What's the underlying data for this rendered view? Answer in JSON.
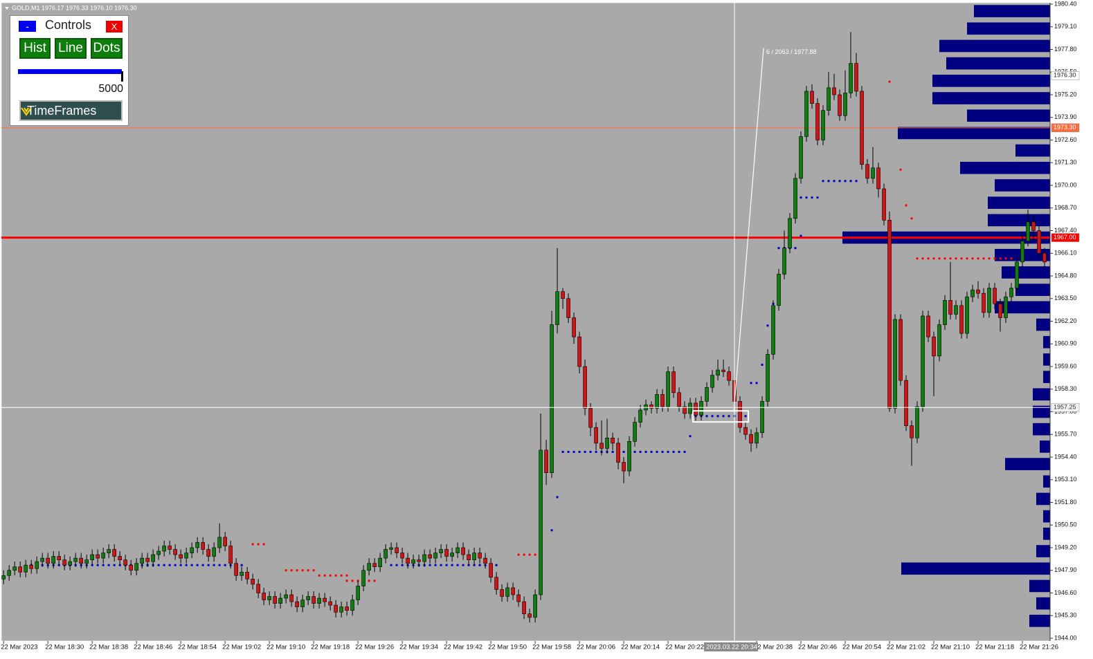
{
  "header": {
    "symbol_info": "GOLD,M1  1976.17 1976.33 1976.10 1976.30"
  },
  "controls": {
    "minimize": "-",
    "title": "Controls",
    "close": "X",
    "buttons": [
      "Hist",
      "Line",
      "Dots"
    ],
    "slider_value": "5000",
    "timeframes": "TimeFrames"
  },
  "chart_data": {
    "type": "candlestick",
    "up_color": "#0d7d0d",
    "down_color": "#d41414",
    "wick_color": "#000000",
    "ylim": [
      1944.0,
      1980.4
    ],
    "yticks": [
      {
        "value": 1980.4,
        "label": "1980.40"
      },
      {
        "value": 1979.1,
        "label": "1979.10"
      },
      {
        "value": 1977.8,
        "label": "1977.80"
      },
      {
        "value": 1976.5,
        "label": "1976.50"
      },
      {
        "value": 1975.2,
        "label": "1975.20"
      },
      {
        "value": 1973.9,
        "label": "1973.90"
      },
      {
        "value": 1972.6,
        "label": "1972.60"
      },
      {
        "value": 1971.3,
        "label": "1971.30"
      },
      {
        "value": 1970.0,
        "label": "1970.00"
      },
      {
        "value": 1968.7,
        "label": "1968.70"
      },
      {
        "value": 1967.4,
        "label": "1967.40"
      },
      {
        "value": 1966.1,
        "label": "1966.10"
      },
      {
        "value": 1964.8,
        "label": "1964.80"
      },
      {
        "value": 1963.5,
        "label": "1963.50"
      },
      {
        "value": 1962.2,
        "label": "1962.20"
      },
      {
        "value": 1960.9,
        "label": "1960.90"
      },
      {
        "value": 1959.6,
        "label": "1959.60"
      },
      {
        "value": 1958.3,
        "label": "1958.30"
      },
      {
        "value": 1957.0,
        "label": "1957.00"
      },
      {
        "value": 1955.7,
        "label": "1955.70"
      },
      {
        "value": 1954.4,
        "label": "1954.40"
      },
      {
        "value": 1953.1,
        "label": "1953.10"
      },
      {
        "value": 1951.8,
        "label": "1951.80"
      },
      {
        "value": 1950.5,
        "label": "1950.50"
      },
      {
        "value": 1949.2,
        "label": "1949.20"
      },
      {
        "value": 1947.9,
        "label": "1947.90"
      },
      {
        "value": 1946.6,
        "label": "1946.60"
      },
      {
        "value": 1945.3,
        "label": "1945.30"
      },
      {
        "value": 1944.0,
        "label": "1944.00"
      }
    ],
    "xlim": [
      -0.4,
      189
    ],
    "xticks": [
      {
        "value": 0,
        "label": "22 Mar 2023"
      },
      {
        "value": 8,
        "label": "22 Mar 18:30"
      },
      {
        "value": 16,
        "label": "22 Mar 18:38"
      },
      {
        "value": 24,
        "label": "22 Mar 18:46"
      },
      {
        "value": 32,
        "label": "22 Mar 18:54"
      },
      {
        "value": 40,
        "label": "22 Mar 19:02"
      },
      {
        "value": 48,
        "label": "22 Mar 19:10"
      },
      {
        "value": 56,
        "label": "22 Mar 19:18"
      },
      {
        "value": 64,
        "label": "22 Mar 19:26"
      },
      {
        "value": 72,
        "label": "22 Mar 19:34"
      },
      {
        "value": 80,
        "label": "22 Mar 19:42"
      },
      {
        "value": 88,
        "label": "22 Mar 19:50"
      },
      {
        "value": 96,
        "label": "22 Mar 19:58"
      },
      {
        "value": 104,
        "label": "22 Mar 20:06"
      },
      {
        "value": 112,
        "label": "22 Mar 20:14"
      },
      {
        "value": 120,
        "label": "22 Mar 20:22"
      },
      {
        "value": 136,
        "label": "22 Mar 20:38"
      },
      {
        "value": 144,
        "label": "22 Mar 20:46"
      },
      {
        "value": 152,
        "label": "22 Mar 20:54"
      },
      {
        "value": 160,
        "label": "22 Mar 21:02"
      },
      {
        "value": 168,
        "label": "22 Mar 21:10"
      },
      {
        "value": 176,
        "label": "22 Mar 21:18"
      },
      {
        "value": 184,
        "label": "22 Mar 21:26"
      }
    ],
    "open": [
      1947.4,
      1947.6,
      1947.9,
      1948.1,
      1947.8,
      1948.2,
      1948.0,
      1948.4,
      1948.6,
      1948.3,
      1948.7,
      1948.5,
      1948.2,
      1948.4,
      1948.6,
      1948.3,
      1948.5,
      1948.8,
      1948.6,
      1948.9,
      1949.1,
      1948.7,
      1948.5,
      1948.2,
      1947.9,
      1948.3,
      1948.6,
      1948.4,
      1948.8,
      1949.0,
      1949.3,
      1949.1,
      1948.8,
      1948.6,
      1948.9,
      1949.2,
      1949.5,
      1949.1,
      1948.7,
      1949.2,
      1949.8,
      1949.3,
      1948.3,
      1947.6,
      1947.8,
      1947.4,
      1947.1,
      1946.6,
      1946.2,
      1946.4,
      1946.0,
      1946.3,
      1946.5,
      1946.1,
      1945.8,
      1946.2,
      1946.4,
      1946.0,
      1946.3,
      1946.1,
      1945.9,
      1945.5,
      1945.8,
      1945.6,
      1946.2,
      1947.0,
      1947.9,
      1948.3,
      1948.1,
      1948.6,
      1949.1,
      1949.2,
      1948.9,
      1948.6,
      1948.3,
      1948.5,
      1948.4,
      1948.8,
      1948.6,
      1948.9,
      1949.1,
      1948.7,
      1948.9,
      1949.2,
      1948.8,
      1948.5,
      1948.9,
      1948.6,
      1948.3,
      1947.5,
      1946.8,
      1946.4,
      1946.9,
      1946.5,
      1946.1,
      1945.4,
      1945.2,
      1946.5,
      1954.8,
      1953.5,
      1962.0,
      1963.9,
      1963.5,
      1962.4,
      1961.3,
      1959.6,
      1957.2,
      1956.1,
      1955.2,
      1954.9,
      1955.5,
      1955.2,
      1954.1,
      1953.6,
      1955.3,
      1956.4,
      1957.1,
      1957.4,
      1957.2,
      1958.0,
      1957.3,
      1959.3,
      1958.1,
      1957.3,
      1956.9,
      1957.5,
      1956.8,
      1957.6,
      1958.4,
      1959.1,
      1959.4,
      1959.3,
      1958.8,
      1957.6,
      1956.1,
      1955.7,
      1955.2,
      1955.8,
      1957.6,
      1960.3,
      1963.1,
      1964.9,
      1966.4,
      1968.1,
      1970.4,
      1972.8,
      1975.4,
      1974.7,
      1972.6,
      1974.3,
      1975.6,
      1975.2,
      1974.0,
      1975.3,
      1977.0,
      1975.4,
      1971.2,
      1970.4,
      1971.0,
      1969.8,
      1968.0,
      1957.2,
      1962.3,
      1958.8,
      1956.2,
      1955.5,
      1957.3,
      1962.5,
      1961.3,
      1960.2,
      1962.0,
      1963.4,
      1962.6,
      1963.1,
      1961.5,
      1963.6,
      1964.0,
      1963.8,
      1962.7,
      1964.1,
      1963.2,
      1962.4,
      1963.6,
      1964.1,
      1965.6,
      1966.8,
      1967.9,
      1967.4,
      1966.1
    ],
    "high": [
      1947.9,
      1948.2,
      1948.4,
      1948.4,
      1948.5,
      1948.5,
      1948.7,
      1948.9,
      1948.9,
      1949.0,
      1949.0,
      1948.8,
      1948.7,
      1948.9,
      1948.9,
      1948.8,
      1949.1,
      1949.1,
      1949.2,
      1949.4,
      1949.4,
      1949.0,
      1948.8,
      1948.5,
      1948.6,
      1948.9,
      1948.9,
      1949.1,
      1949.3,
      1949.6,
      1949.6,
      1949.4,
      1949.1,
      1949.2,
      1949.5,
      1949.8,
      1949.8,
      1949.4,
      1949.5,
      1950.6,
      1950.1,
      1949.6,
      1948.6,
      1948.1,
      1948.1,
      1947.7,
      1947.4,
      1946.9,
      1946.7,
      1946.7,
      1946.6,
      1946.8,
      1946.8,
      1946.4,
      1946.5,
      1946.7,
      1946.7,
      1946.6,
      1946.6,
      1946.4,
      1946.2,
      1946.1,
      1946.1,
      1946.5,
      1947.3,
      1948.2,
      1948.6,
      1948.6,
      1948.9,
      1949.4,
      1949.5,
      1949.5,
      1949.2,
      1948.9,
      1948.8,
      1948.8,
      1949.1,
      1949.1,
      1949.2,
      1949.4,
      1949.4,
      1949.2,
      1949.5,
      1949.5,
      1949.1,
      1949.2,
      1949.2,
      1948.9,
      1948.6,
      1947.8,
      1947.1,
      1947.2,
      1947.2,
      1946.8,
      1946.4,
      1945.7,
      1946.8,
      1956.9,
      1955.4,
      1962.8,
      1966.4,
      1964.1,
      1963.8,
      1962.7,
      1961.6,
      1960.0,
      1957.5,
      1956.4,
      1956.5,
      1956.6,
      1955.8,
      1955.5,
      1954.4,
      1955.6,
      1956.7,
      1957.4,
      1957.7,
      1957.6,
      1958.3,
      1958.3,
      1959.6,
      1959.6,
      1958.4,
      1957.6,
      1957.8,
      1957.8,
      1957.9,
      1958.7,
      1959.4,
      1960.0,
      1960.0,
      1959.6,
      1959.1,
      1957.9,
      1956.4,
      1956.0,
      1956.1,
      1957.9,
      1960.6,
      1963.4,
      1965.2,
      1967.4,
      1968.4,
      1970.7,
      1973.1,
      1975.7,
      1975.8,
      1975.0,
      1974.6,
      1976.5,
      1976.4,
      1975.5,
      1976.6,
      1978.8,
      1977.6,
      1975.7,
      1971.5,
      1972.2,
      1971.3,
      1970.1,
      1968.5,
      1962.6,
      1962.6,
      1959.1,
      1956.5,
      1957.6,
      1962.8,
      1962.8,
      1961.6,
      1962.3,
      1963.7,
      1965.6,
      1963.4,
      1963.4,
      1963.9,
      1964.3,
      1964.5,
      1964.1,
      1964.4,
      1964.4,
      1963.5,
      1963.9,
      1964.4,
      1965.9,
      1967.1,
      1968.6,
      1968.3,
      1967.7,
      1966.4
    ],
    "low": [
      1947.1,
      1947.3,
      1947.6,
      1947.5,
      1947.5,
      1947.7,
      1947.7,
      1948.1,
      1948.0,
      1948.0,
      1948.2,
      1947.9,
      1947.9,
      1948.1,
      1948.0,
      1948.0,
      1948.2,
      1948.3,
      1948.3,
      1948.6,
      1948.4,
      1948.2,
      1947.9,
      1947.6,
      1947.6,
      1948.0,
      1948.1,
      1948.1,
      1948.5,
      1948.7,
      1948.8,
      1948.5,
      1948.3,
      1948.3,
      1948.6,
      1948.9,
      1948.8,
      1948.4,
      1948.4,
      1948.9,
      1949.0,
      1948.0,
      1947.3,
      1947.3,
      1947.1,
      1946.8,
      1946.3,
      1945.9,
      1945.9,
      1945.7,
      1945.7,
      1946.0,
      1945.8,
      1945.5,
      1945.5,
      1945.9,
      1945.7,
      1945.7,
      1945.8,
      1945.6,
      1945.2,
      1945.2,
      1945.3,
      1945.3,
      1945.9,
      1946.7,
      1947.6,
      1947.8,
      1947.8,
      1948.3,
      1948.8,
      1948.6,
      1948.3,
      1948.0,
      1948.0,
      1948.1,
      1948.1,
      1948.3,
      1948.3,
      1948.6,
      1948.4,
      1948.4,
      1948.6,
      1948.5,
      1948.2,
      1948.2,
      1948.3,
      1948.0,
      1947.2,
      1946.5,
      1946.1,
      1946.1,
      1946.2,
      1945.8,
      1945.1,
      1944.9,
      1944.9,
      1946.2,
      1952.8,
      1953.2,
      1961.5,
      1962.9,
      1962.1,
      1960.9,
      1959.2,
      1956.8,
      1955.6,
      1954.8,
      1954.5,
      1954.6,
      1954.8,
      1953.7,
      1952.9,
      1953.3,
      1955.0,
      1956.1,
      1956.8,
      1956.9,
      1956.9,
      1957.0,
      1957.0,
      1957.8,
      1957.0,
      1956.6,
      1956.6,
      1956.5,
      1956.5,
      1957.3,
      1958.1,
      1958.8,
      1959.0,
      1958.5,
      1957.3,
      1955.8,
      1955.4,
      1954.7,
      1954.9,
      1955.5,
      1957.3,
      1960.0,
      1962.8,
      1964.6,
      1966.1,
      1967.8,
      1970.1,
      1972.5,
      1974.4,
      1972.3,
      1972.3,
      1974.0,
      1974.9,
      1973.7,
      1973.7,
      1975.0,
      1975.1,
      1970.9,
      1970.1,
      1970.1,
      1969.3,
      1967.7,
      1957.0,
      1956.9,
      1958.5,
      1955.9,
      1953.9,
      1955.2,
      1957.0,
      1961.0,
      1957.9,
      1959.9,
      1961.7,
      1962.3,
      1962.3,
      1961.2,
      1961.2,
      1963.3,
      1963.5,
      1962.4,
      1962.4,
      1962.9,
      1961.6,
      1962.1,
      1963.3,
      1963.8,
      1965.3,
      1966.5,
      1966.8,
      1965.8,
      1965.3
    ],
    "close": [
      1947.6,
      1947.9,
      1948.1,
      1947.8,
      1948.2,
      1948.0,
      1948.4,
      1948.6,
      1948.3,
      1948.7,
      1948.5,
      1948.2,
      1948.4,
      1948.6,
      1948.3,
      1948.5,
      1948.8,
      1948.6,
      1948.9,
      1949.1,
      1948.7,
      1948.5,
      1948.2,
      1947.9,
      1948.3,
      1948.6,
      1948.4,
      1948.8,
      1949.0,
      1949.3,
      1949.1,
      1948.8,
      1948.6,
      1948.9,
      1949.2,
      1949.5,
      1949.1,
      1948.7,
      1949.2,
      1949.8,
      1949.3,
      1948.3,
      1947.6,
      1947.8,
      1947.4,
      1947.1,
      1946.6,
      1946.2,
      1946.4,
      1946.0,
      1946.3,
      1946.5,
      1946.1,
      1945.8,
      1946.2,
      1946.4,
      1946.0,
      1946.3,
      1946.1,
      1945.9,
      1945.5,
      1945.8,
      1945.6,
      1946.2,
      1947.0,
      1947.9,
      1948.3,
      1948.1,
      1948.6,
      1949.1,
      1949.2,
      1948.9,
      1948.6,
      1948.3,
      1948.5,
      1948.4,
      1948.8,
      1948.6,
      1948.9,
      1949.1,
      1948.7,
      1948.9,
      1949.2,
      1948.8,
      1948.5,
      1948.9,
      1948.6,
      1948.3,
      1947.5,
      1946.8,
      1946.4,
      1946.9,
      1946.5,
      1946.1,
      1945.4,
      1945.2,
      1946.5,
      1954.8,
      1953.5,
      1962.0,
      1963.9,
      1963.5,
      1962.4,
      1961.3,
      1959.6,
      1957.2,
      1956.1,
      1955.2,
      1954.9,
      1955.5,
      1955.2,
      1954.1,
      1953.6,
      1955.3,
      1956.4,
      1957.1,
      1957.4,
      1957.2,
      1958.0,
      1957.3,
      1959.3,
      1958.1,
      1957.3,
      1956.9,
      1957.5,
      1956.8,
      1957.6,
      1958.4,
      1959.1,
      1959.4,
      1959.3,
      1958.8,
      1957.6,
      1956.1,
      1955.7,
      1955.2,
      1955.8,
      1957.6,
      1960.3,
      1963.1,
      1964.9,
      1966.4,
      1968.1,
      1970.4,
      1972.8,
      1975.4,
      1974.7,
      1972.6,
      1974.3,
      1975.6,
      1975.2,
      1974.0,
      1975.3,
      1977.0,
      1975.4,
      1971.2,
      1970.4,
      1971.0,
      1969.8,
      1968.0,
      1957.2,
      1962.3,
      1958.8,
      1956.2,
      1955.5,
      1957.3,
      1962.5,
      1961.3,
      1960.2,
      1962.0,
      1963.4,
      1962.6,
      1963.1,
      1961.5,
      1963.6,
      1964.0,
      1963.8,
      1962.7,
      1964.1,
      1963.2,
      1962.4,
      1963.6,
      1964.1,
      1965.6,
      1966.8,
      1967.9,
      1967.4,
      1966.1,
      1965.6
    ],
    "profile": {
      "color": "#000080",
      "xlim": [
        0,
        300
      ],
      "prices": [
        1945,
        1946,
        1947,
        1948,
        1949,
        1950,
        1951,
        1952,
        1953,
        1954,
        1955,
        1956,
        1957,
        1958,
        1959,
        1960,
        1961,
        1962,
        1963,
        1964,
        1965,
        1966,
        1967,
        1968,
        1969,
        1970,
        1971,
        1972,
        1973,
        1974,
        1975,
        1976,
        1977,
        1978,
        1979,
        1980
      ],
      "values": [
        30,
        20,
        30,
        215,
        20,
        10,
        10,
        20,
        10,
        65,
        15,
        25,
        25,
        25,
        10,
        10,
        10,
        20,
        80,
        50,
        70,
        80,
        300,
        90,
        90,
        80,
        130,
        50,
        220,
        120,
        170,
        170,
        150,
        160,
        120,
        110
      ]
    },
    "hlines": [
      {
        "price": 1967.0,
        "label": "1967.00",
        "color": "#ff0000"
      },
      {
        "price": 1973.3,
        "label": "1973.30",
        "color": "#ff6a3d"
      }
    ],
    "bid": {
      "price": 1976.3,
      "label": "1976.30"
    },
    "crosshair": {
      "x": 132,
      "price": 1957.25,
      "time_label": "2023.03.22 20:34",
      "price_label": "1957.25"
    },
    "ruler": {
      "label": "6 / 2063 / 1977.88",
      "from": {
        "x": 131.9,
        "price": 1957.1
      },
      "to": {
        "x": 137.25,
        "price": 1977.88
      }
    },
    "dots": [
      {
        "from": 5,
        "to": 43,
        "price": 1948.2,
        "color": "#0000cc"
      },
      {
        "from": 45,
        "to": 47,
        "price": 1949.4,
        "color": "#ff0000"
      },
      {
        "from": 51,
        "to": 56,
        "price": 1947.9,
        "color": "#ff0000"
      },
      {
        "from": 57,
        "to": 62,
        "price": 1947.6,
        "color": "#ff0000"
      },
      {
        "from": 62,
        "to": 67,
        "price": 1947.3,
        "color": "#ff0000"
      },
      {
        "from": 70,
        "to": 89,
        "price": 1948.2,
        "color": "#0000cc"
      },
      {
        "from": 93,
        "to": 97,
        "price": 1948.8,
        "color": "#ff0000"
      },
      {
        "from": 99,
        "to": 99,
        "price": 1950.2,
        "color": "#0000cc"
      },
      {
        "from": 100,
        "to": 100,
        "price": 1952.1,
        "color": "#0000cc"
      },
      {
        "from": 101,
        "to": 123,
        "price": 1954.7,
        "color": "#0000cc"
      },
      {
        "from": 124,
        "to": 124,
        "price": 1955.6,
        "color": "#0000cc"
      },
      {
        "from": 125,
        "to": 134,
        "price": 1956.75,
        "color": "#0000cc"
      },
      {
        "from": 135,
        "to": 136,
        "price": 1958.65,
        "color": "#0000cc"
      },
      {
        "from": 137,
        "to": 137,
        "price": 1959.7,
        "color": "#0000cc"
      },
      {
        "from": 138,
        "to": 138,
        "price": 1961.95,
        "color": "#0000cc"
      },
      {
        "from": 139,
        "to": 139,
        "price": 1963.2,
        "color": "#0000cc"
      },
      {
        "from": 140,
        "to": 143,
        "price": 1966.4,
        "color": "#0000cc"
      },
      {
        "from": 144,
        "to": 144,
        "price": 1967.1,
        "color": "#0000cc"
      },
      {
        "from": 144,
        "to": 147,
        "price": 1969.3,
        "color": "#0000cc"
      },
      {
        "from": 148,
        "to": 154,
        "price": 1970.25,
        "color": "#0000cc"
      },
      {
        "from": 160,
        "to": 160,
        "price": 1975.95,
        "color": "#ff0000"
      },
      {
        "from": 162,
        "to": 162,
        "price": 1970.9,
        "color": "#ff0000"
      },
      {
        "from": 163,
        "to": 163,
        "price": 1968.85,
        "color": "#ff0000"
      },
      {
        "from": 164,
        "to": 164,
        "price": 1968.1,
        "color": "#ff0000"
      },
      {
        "from": 165,
        "to": 182,
        "price": 1965.8,
        "color": "#ff0000"
      }
    ]
  }
}
